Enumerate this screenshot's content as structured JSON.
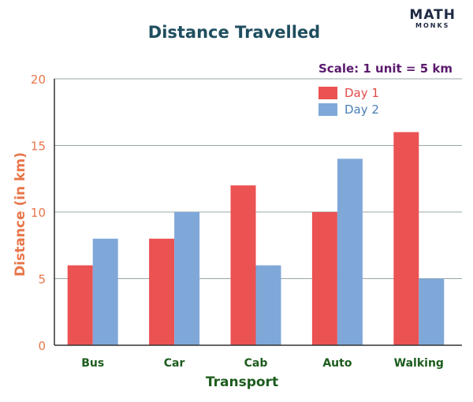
{
  "logo": {
    "main": "MATH",
    "sub": "MONKS"
  },
  "colors": {
    "day1": "#eb5252",
    "day2": "#7fa8d9",
    "grid": "#9aa7a7"
  },
  "chart_data": {
    "type": "bar",
    "title": "Distance Travelled",
    "xlabel": "Transport",
    "ylabel": "Distance (in km)",
    "annotation": "Scale: 1 unit = 5 km",
    "categories": [
      "Bus",
      "Car",
      "Cab",
      "Auto",
      "Walking"
    ],
    "series": [
      {
        "name": "Day 1",
        "values": [
          6,
          8,
          12,
          10,
          16
        ]
      },
      {
        "name": "Day 2",
        "values": [
          8,
          10,
          6,
          14,
          5
        ]
      }
    ],
    "ylim": [
      0,
      20
    ],
    "yticks": [
      "0",
      "5",
      "10",
      "15",
      "20"
    ],
    "legend_position": "top-right",
    "grid": true
  }
}
